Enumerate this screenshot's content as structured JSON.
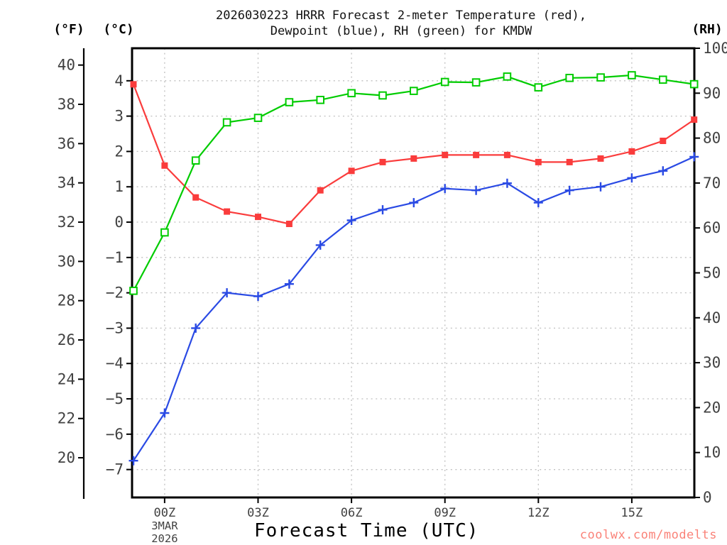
{
  "title": {
    "line1": "2026030223 HRRR Forecast 2-meter Temperature (red),",
    "line2": "Dewpoint (blue), RH (green) for KMDW"
  },
  "unit_labels": {
    "fahrenheit": "(°F)",
    "celsius": "(°C)",
    "relative_humidity": "(RH)"
  },
  "x_axis": {
    "label": "Forecast Time (UTC)",
    "tick_labels": [
      "00Z",
      "03Z",
      "06Z",
      "09Z",
      "12Z",
      "15Z"
    ],
    "first_tick_date": [
      "3MAR",
      "2026"
    ]
  },
  "y_axis_f": {
    "ticks": [
      40,
      38,
      36,
      34,
      32,
      30,
      28,
      26,
      24,
      22,
      20
    ]
  },
  "y_axis_c": {
    "ticks": [
      4,
      3,
      2,
      1,
      0,
      -1,
      -2,
      -3,
      -4,
      -5,
      -6,
      -7
    ]
  },
  "y_axis_rh": {
    "ticks": [
      100,
      90,
      80,
      70,
      60,
      50,
      40,
      30,
      20,
      10,
      0
    ]
  },
  "watermark": "coolwx.com/modelts",
  "colors": {
    "red": "#fa3c3c",
    "blue": "#2a4ae4",
    "green": "#00cc00",
    "grid": "#c0c0c0",
    "tick_text": "#414141",
    "watermark": "#fa8278"
  },
  "chart_data": {
    "type": "line",
    "station": "KMDW",
    "model_run": "2026030223",
    "x_hours_utc": [
      "23Z",
      "00Z",
      "01Z",
      "02Z",
      "03Z",
      "04Z",
      "05Z",
      "06Z",
      "07Z",
      "08Z",
      "09Z",
      "10Z",
      "11Z",
      "12Z",
      "13Z",
      "14Z",
      "15Z",
      "16Z",
      "17Z"
    ],
    "x_tick_hours": [
      "00Z",
      "03Z",
      "06Z",
      "09Z",
      "12Z",
      "15Z"
    ],
    "grid": true,
    "axis_ranges": {
      "celsius": [
        -7.79,
        4.92
      ],
      "fahrenheit_tick_span": [
        20,
        40
      ],
      "rh": [
        0,
        100
      ]
    },
    "series": [
      {
        "name": "2-meter Temperature",
        "color": "red",
        "unit": "°C",
        "marker": "filled-square",
        "values": [
          3.9,
          1.6,
          0.7,
          0.3,
          0.15,
          -0.05,
          0.9,
          1.45,
          1.7,
          1.8,
          1.9,
          1.9,
          1.9,
          1.7,
          1.7,
          1.8,
          2.0,
          2.3,
          2.9
        ]
      },
      {
        "name": "Dewpoint",
        "color": "blue",
        "unit": "°C",
        "marker": "plus",
        "values": [
          -6.75,
          -5.4,
          -3.0,
          -2.0,
          -2.1,
          -1.75,
          -0.65,
          0.05,
          0.35,
          0.55,
          0.95,
          0.9,
          1.1,
          0.55,
          0.9,
          1.0,
          1.25,
          1.45,
          1.85
        ]
      },
      {
        "name": "Relative Humidity",
        "color": "green",
        "unit": "%",
        "marker": "open-square",
        "values": [
          46,
          59,
          75,
          83.5,
          84.5,
          88,
          88.5,
          90,
          89.5,
          90.5,
          92.5,
          92.4,
          93.7,
          91.3,
          93.4,
          93.5,
          94,
          93,
          92
        ]
      }
    ]
  }
}
